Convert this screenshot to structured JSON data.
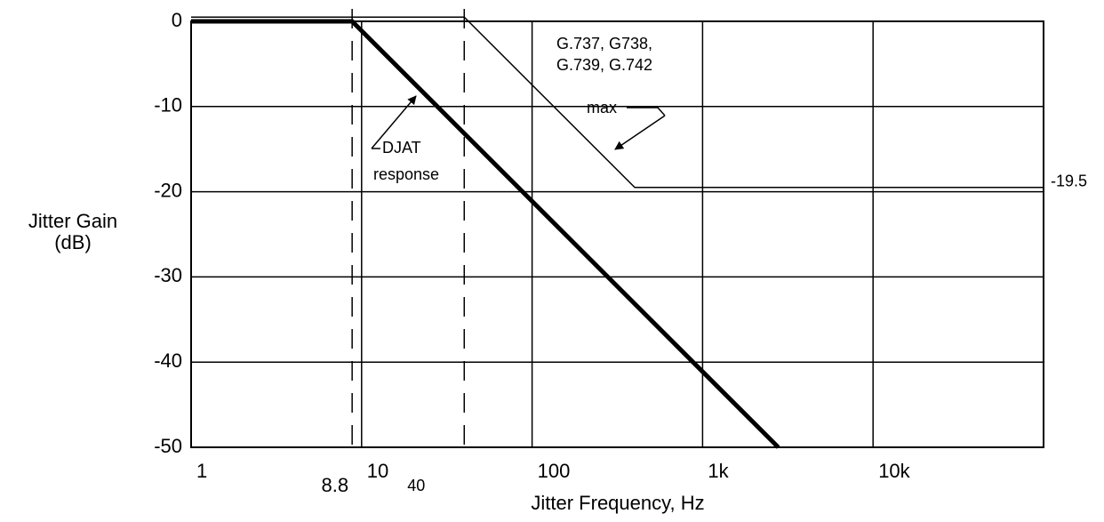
{
  "chart_data": {
    "type": "line",
    "xlabel": "Jitter Frequency, Hz",
    "ylabel": [
      "Jitter Gain",
      "(dB)"
    ],
    "xscale": "log",
    "xlim": [
      1,
      100000
    ],
    "ylim": [
      -50,
      0
    ],
    "xticks": [
      1,
      10,
      100,
      {
        "value": 1000,
        "label": "1k"
      },
      {
        "value": 10000,
        "label": "10k"
      }
    ],
    "yticks": [
      0,
      -10,
      -20,
      -30,
      -40,
      -50
    ],
    "grid": true,
    "dashed_lines": [
      8.8,
      40
    ],
    "series": [
      {
        "color": "#000000",
        "width": 1.5,
        "x": [
          1,
          40,
          400,
          100000
        ],
        "y": [
          0.5,
          0.5,
          -19.5,
          -19.5
        ]
      },
      {
        "color": "#000000",
        "width": 5,
        "x": [
          1,
          8.8,
          2780
        ],
        "y": [
          0,
          0,
          -50
        ]
      }
    ],
    "annotations": [
      {
        "lines": [
          "G.737, G738,",
          "G.739, G.742",
          "max"
        ]
      },
      {
        "lines": [
          "DJAT",
          "response"
        ]
      }
    ]
  }
}
